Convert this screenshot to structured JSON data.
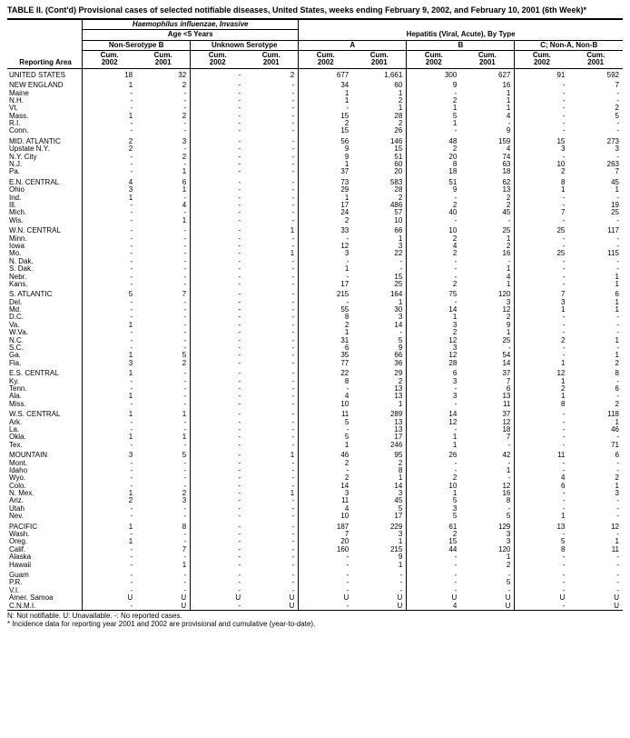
{
  "title": "TABLE II. (Cont'd) Provisional cases of selected notifiable diseases, United States, weeks ending February 9, 2002, and February 10, 2001 (6th Week)*",
  "group_headers": {
    "hi": "Haemophilus influenzae, Invasive",
    "hi_age": "Age <5 Years",
    "hi_nonb": "Non-Serotype B",
    "hi_unk": "Unknown Serotype",
    "hep": "Hepatitis (Viral, Acute), By Type",
    "hep_a": "A",
    "hep_b": "B",
    "hep_c": "C; Non-A, Non-B"
  },
  "col_headers": {
    "reporting": "Reporting Area",
    "c02": "Cum.\n2002",
    "c01": "Cum.\n2001"
  },
  "footnotes": [
    "N: Not notifiable.      U: Unavailable.         -: No reported cases.",
    "* Incidence data for reporting year 2001 and 2002 are provisional and cumulative (year-to-date)."
  ],
  "sections": [
    {
      "rows": [
        {
          "area": "UNITED STATES",
          "v": [
            "18",
            "32",
            "-",
            "2",
            "677",
            "1,661",
            "300",
            "627",
            "91",
            "592"
          ]
        }
      ]
    },
    {
      "rows": [
        {
          "area": "NEW ENGLAND",
          "v": [
            "1",
            "2",
            "-",
            "-",
            "34",
            "60",
            "9",
            "16",
            "-",
            "7"
          ]
        },
        {
          "area": "Maine",
          "v": [
            "-",
            "-",
            "-",
            "-",
            "1",
            "1",
            "-",
            "1",
            "-",
            "-"
          ]
        },
        {
          "area": "N.H.",
          "v": [
            "-",
            "-",
            "-",
            "-",
            "1",
            "2",
            "2",
            "1",
            "-",
            "-"
          ]
        },
        {
          "area": "Vt.",
          "v": [
            "-",
            "-",
            "-",
            "-",
            "-",
            "1",
            "1",
            "1",
            "-",
            "2"
          ]
        },
        {
          "area": "Mass.",
          "v": [
            "1",
            "2",
            "-",
            "-",
            "15",
            "28",
            "5",
            "4",
            "-",
            "5"
          ]
        },
        {
          "area": "R.I.",
          "v": [
            "-",
            "-",
            "-",
            "-",
            "2",
            "2",
            "1",
            "-",
            "-",
            "-"
          ]
        },
        {
          "area": "Conn.",
          "v": [
            "-",
            "-",
            "-",
            "-",
            "15",
            "26",
            "-",
            "9",
            "-",
            "-"
          ]
        }
      ]
    },
    {
      "rows": [
        {
          "area": "MID. ATLANTIC",
          "v": [
            "2",
            "3",
            "-",
            "-",
            "56",
            "146",
            "48",
            "159",
            "15",
            "273"
          ]
        },
        {
          "area": "Upstate N.Y.",
          "v": [
            "2",
            "-",
            "-",
            "-",
            "9",
            "15",
            "2",
            "4",
            "3",
            "3"
          ]
        },
        {
          "area": "N.Y. City",
          "v": [
            "-",
            "2",
            "-",
            "-",
            "9",
            "51",
            "20",
            "74",
            "-",
            "-"
          ]
        },
        {
          "area": "N.J.",
          "v": [
            "-",
            "-",
            "-",
            "-",
            "1",
            "60",
            "8",
            "63",
            "10",
            "263"
          ]
        },
        {
          "area": "Pa.",
          "v": [
            "-",
            "1",
            "-",
            "-",
            "37",
            "20",
            "18",
            "18",
            "2",
            "7"
          ]
        }
      ]
    },
    {
      "rows": [
        {
          "area": "E.N. CENTRAL",
          "v": [
            "4",
            "6",
            "-",
            "-",
            "73",
            "583",
            "51",
            "62",
            "8",
            "45"
          ]
        },
        {
          "area": "Ohio",
          "v": [
            "3",
            "1",
            "-",
            "-",
            "29",
            "28",
            "9",
            "13",
            "1",
            "1"
          ]
        },
        {
          "area": "Ind.",
          "v": [
            "1",
            "-",
            "-",
            "-",
            "1",
            "2",
            "-",
            "2",
            "-",
            "-"
          ]
        },
        {
          "area": "Ill.",
          "v": [
            "-",
            "4",
            "-",
            "-",
            "17",
            "486",
            "2",
            "2",
            "-",
            "19"
          ]
        },
        {
          "area": "Mich.",
          "v": [
            "-",
            "-",
            "-",
            "-",
            "24",
            "57",
            "40",
            "45",
            "7",
            "25"
          ]
        },
        {
          "area": "Wis.",
          "v": [
            "-",
            "1",
            "-",
            "-",
            "2",
            "10",
            "-",
            "-",
            "-",
            "-"
          ]
        }
      ]
    },
    {
      "rows": [
        {
          "area": "W.N. CENTRAL",
          "v": [
            "-",
            "-",
            "-",
            "1",
            "33",
            "66",
            "10",
            "25",
            "25",
            "117"
          ]
        },
        {
          "area": "Minn.",
          "v": [
            "-",
            "-",
            "-",
            "-",
            "-",
            "1",
            "2",
            "1",
            "-",
            "-"
          ]
        },
        {
          "area": "Iowa",
          "v": [
            "-",
            "-",
            "-",
            "-",
            "12",
            "3",
            "4",
            "2",
            "-",
            "-"
          ]
        },
        {
          "area": "Mo.",
          "v": [
            "-",
            "-",
            "-",
            "1",
            "3",
            "22",
            "2",
            "16",
            "25",
            "115"
          ]
        },
        {
          "area": "N. Dak.",
          "v": [
            "-",
            "-",
            "-",
            "-",
            "-",
            "-",
            "-",
            "-",
            "-",
            "-"
          ]
        },
        {
          "area": "S. Dak.",
          "v": [
            "-",
            "-",
            "-",
            "-",
            "1",
            "-",
            "-",
            "1",
            "-",
            "-"
          ]
        },
        {
          "area": "Nebr.",
          "v": [
            "-",
            "-",
            "-",
            "-",
            "-",
            "15",
            "-",
            "4",
            "-",
            "1"
          ]
        },
        {
          "area": "Kans.",
          "v": [
            "-",
            "-",
            "-",
            "-",
            "17",
            "25",
            "2",
            "1",
            "-",
            "1"
          ]
        }
      ]
    },
    {
      "rows": [
        {
          "area": "S. ATLANTIC",
          "v": [
            "5",
            "7",
            "-",
            "-",
            "215",
            "164",
            "75",
            "120",
            "7",
            "6"
          ]
        },
        {
          "area": "Del.",
          "v": [
            "-",
            "-",
            "-",
            "-",
            "-",
            "1",
            "-",
            "3",
            "3",
            "1"
          ]
        },
        {
          "area": "Md.",
          "v": [
            "-",
            "-",
            "-",
            "-",
            "55",
            "30",
            "14",
            "12",
            "1",
            "1"
          ]
        },
        {
          "area": "D.C.",
          "v": [
            "-",
            "-",
            "-",
            "-",
            "8",
            "3",
            "1",
            "2",
            "-",
            "-"
          ]
        },
        {
          "area": "Va.",
          "v": [
            "1",
            "-",
            "-",
            "-",
            "2",
            "14",
            "3",
            "9",
            "-",
            "-"
          ]
        },
        {
          "area": "W.Va.",
          "v": [
            "-",
            "-",
            "-",
            "-",
            "1",
            "-",
            "2",
            "1",
            "-",
            "-"
          ]
        },
        {
          "area": "N.C.",
          "v": [
            "-",
            "-",
            "-",
            "-",
            "31",
            "5",
            "12",
            "25",
            "2",
            "1"
          ]
        },
        {
          "area": "S.C.",
          "v": [
            "-",
            "-",
            "-",
            "-",
            "6",
            "9",
            "3",
            "-",
            "-",
            "-"
          ]
        },
        {
          "area": "Ga.",
          "v": [
            "1",
            "5",
            "-",
            "-",
            "35",
            "66",
            "12",
            "54",
            "-",
            "1"
          ]
        },
        {
          "area": "Fla.",
          "v": [
            "3",
            "2",
            "-",
            "-",
            "77",
            "36",
            "28",
            "14",
            "1",
            "2"
          ]
        }
      ]
    },
    {
      "rows": [
        {
          "area": "E.S. CENTRAL",
          "v": [
            "1",
            "-",
            "-",
            "-",
            "22",
            "29",
            "6",
            "37",
            "12",
            "8"
          ]
        },
        {
          "area": "Ky.",
          "v": [
            "-",
            "-",
            "-",
            "-",
            "8",
            "2",
            "3",
            "7",
            "1",
            "-"
          ]
        },
        {
          "area": "Tenn.",
          "v": [
            "-",
            "-",
            "-",
            "-",
            "-",
            "13",
            "-",
            "6",
            "2",
            "6"
          ]
        },
        {
          "area": "Ala.",
          "v": [
            "1",
            "-",
            "-",
            "-",
            "4",
            "13",
            "3",
            "13",
            "1",
            "-"
          ]
        },
        {
          "area": "Miss.",
          "v": [
            "-",
            "-",
            "-",
            "-",
            "10",
            "1",
            "-",
            "11",
            "8",
            "2"
          ]
        }
      ]
    },
    {
      "rows": [
        {
          "area": "W.S. CENTRAL",
          "v": [
            "1",
            "1",
            "-",
            "-",
            "11",
            "289",
            "14",
            "37",
            "-",
            "118"
          ]
        },
        {
          "area": "Ark.",
          "v": [
            "-",
            "-",
            "-",
            "-",
            "5",
            "13",
            "12",
            "12",
            "-",
            "1"
          ]
        },
        {
          "area": "La.",
          "v": [
            "-",
            "-",
            "-",
            "-",
            "-",
            "13",
            "-",
            "18",
            "-",
            "46"
          ]
        },
        {
          "area": "Okla.",
          "v": [
            "1",
            "1",
            "-",
            "-",
            "5",
            "17",
            "1",
            "7",
            "-",
            "-"
          ]
        },
        {
          "area": "Tex.",
          "v": [
            "-",
            "-",
            "-",
            "-",
            "1",
            "246",
            "1",
            "-",
            "-",
            "71"
          ]
        }
      ]
    },
    {
      "rows": [
        {
          "area": "MOUNTAIN",
          "v": [
            "3",
            "5",
            "-",
            "1",
            "46",
            "95",
            "26",
            "42",
            "11",
            "6"
          ]
        },
        {
          "area": "Mont.",
          "v": [
            "-",
            "-",
            "-",
            "-",
            "2",
            "2",
            "-",
            "-",
            "-",
            "-"
          ]
        },
        {
          "area": "Idaho",
          "v": [
            "-",
            "-",
            "-",
            "-",
            "-",
            "8",
            "-",
            "1",
            "-",
            "-"
          ]
        },
        {
          "area": "Wyo.",
          "v": [
            "-",
            "-",
            "-",
            "-",
            "2",
            "1",
            "2",
            "-",
            "4",
            "2"
          ]
        },
        {
          "area": "Colo.",
          "v": [
            "-",
            "-",
            "-",
            "-",
            "14",
            "14",
            "10",
            "12",
            "6",
            "1"
          ]
        },
        {
          "area": "N. Mex.",
          "v": [
            "1",
            "2",
            "-",
            "1",
            "3",
            "3",
            "1",
            "16",
            "-",
            "3"
          ]
        },
        {
          "area": "Ariz.",
          "v": [
            "2",
            "3",
            "-",
            "-",
            "11",
            "45",
            "5",
            "8",
            "-",
            "-"
          ]
        },
        {
          "area": "Utah",
          "v": [
            "-",
            "-",
            "-",
            "-",
            "4",
            "5",
            "3",
            "-",
            "-",
            "-"
          ]
        },
        {
          "area": "Nev.",
          "v": [
            "-",
            "-",
            "-",
            "-",
            "10",
            "17",
            "5",
            "5",
            "1",
            "-"
          ]
        }
      ]
    },
    {
      "rows": [
        {
          "area": "PACIFIC",
          "v": [
            "1",
            "8",
            "-",
            "-",
            "187",
            "229",
            "61",
            "129",
            "13",
            "12"
          ]
        },
        {
          "area": "Wash.",
          "v": [
            "-",
            "-",
            "-",
            "-",
            "7",
            "3",
            "2",
            "3",
            "-",
            "-"
          ]
        },
        {
          "area": "Oreg.",
          "v": [
            "1",
            "-",
            "-",
            "-",
            "20",
            "1",
            "15",
            "3",
            "5",
            "1"
          ]
        },
        {
          "area": "Calif.",
          "v": [
            "-",
            "7",
            "-",
            "-",
            "160",
            "215",
            "44",
            "120",
            "8",
            "11"
          ]
        },
        {
          "area": "Alaska",
          "v": [
            "-",
            "-",
            "-",
            "-",
            "-",
            "9",
            "-",
            "1",
            "-",
            "-"
          ]
        },
        {
          "area": "Hawaii",
          "v": [
            "-",
            "1",
            "-",
            "-",
            "-",
            "1",
            "-",
            "2",
            "-",
            "-"
          ]
        }
      ]
    },
    {
      "rows": [
        {
          "area": "Guam",
          "v": [
            "-",
            "-",
            "-",
            "-",
            "-",
            "-",
            "-",
            "-",
            "-",
            "-"
          ]
        },
        {
          "area": "P.R.",
          "v": [
            "-",
            "-",
            "-",
            "-",
            "-",
            "-",
            "-",
            "5",
            "-",
            "-"
          ]
        },
        {
          "area": "V.I.",
          "v": [
            "-",
            "-",
            "-",
            "-",
            "-",
            "-",
            "-",
            "-",
            "-",
            "-"
          ]
        },
        {
          "area": "Amer. Samoa",
          "v": [
            "U",
            "U",
            "U",
            "U",
            "U",
            "U",
            "U",
            "U",
            "U",
            "U"
          ]
        },
        {
          "area": "C.N.M.I.",
          "v": [
            "-",
            "U",
            "-",
            "U",
            "-",
            "U",
            "4",
            "U",
            "-",
            "U"
          ]
        }
      ]
    }
  ]
}
